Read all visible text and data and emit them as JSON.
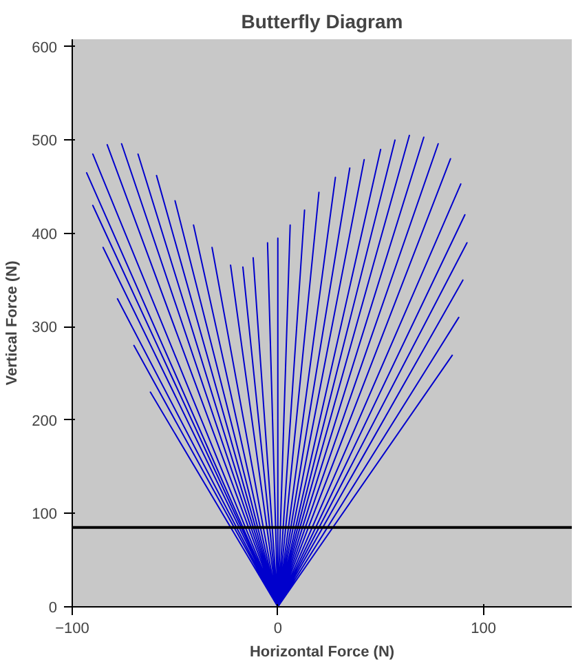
{
  "chart_data": {
    "type": "line",
    "title": "Butterfly Diagram",
    "xlabel": "Horizontal Force (N)",
    "ylabel": "Vertical Force (N)",
    "xlim": [
      -100,
      143
    ],
    "ylim": [
      0,
      608
    ],
    "xticks": [
      -100,
      0,
      100
    ],
    "yticks": [
      0,
      100,
      200,
      300,
      400,
      500,
      600
    ],
    "grid": false,
    "series": [
      {
        "color": "#0000cc",
        "x": [
          0,
          -62,
          0,
          -70,
          0,
          -78,
          0,
          -85,
          0,
          -90,
          0,
          -93,
          0,
          -90,
          0,
          -83,
          0,
          -76,
          0,
          -68,
          0,
          -59,
          0,
          -50,
          0,
          -41,
          0,
          -32,
          0,
          -23,
          0,
          -17,
          0,
          -12,
          0,
          -5,
          0,
          0,
          0,
          6,
          0,
          13,
          0,
          20,
          0,
          28,
          0,
          35,
          0,
          42,
          0,
          50,
          0,
          57,
          0,
          64,
          0,
          71,
          0,
          78,
          0,
          84,
          0,
          89,
          0,
          91,
          0,
          92,
          0,
          90,
          0,
          88,
          0,
          85
        ],
        "values": [
          0,
          230,
          0,
          280,
          0,
          330,
          0,
          385,
          0,
          430,
          0,
          465,
          0,
          485,
          0,
          495,
          0,
          496,
          0,
          485,
          0,
          462,
          0,
          435,
          0,
          409,
          0,
          385,
          0,
          366,
          0,
          364,
          0,
          374,
          0,
          390,
          0,
          395,
          0,
          409,
          0,
          425,
          0,
          444,
          0,
          460,
          0,
          470,
          0,
          479,
          0,
          490,
          0,
          500,
          0,
          505,
          0,
          503,
          0,
          496,
          0,
          480,
          0,
          453,
          0,
          420,
          0,
          390,
          0,
          350,
          0,
          310,
          0,
          270
        ]
      }
    ],
    "ref_lines": [
      {
        "axis": "y",
        "value": 85,
        "color": "#000000"
      }
    ]
  }
}
